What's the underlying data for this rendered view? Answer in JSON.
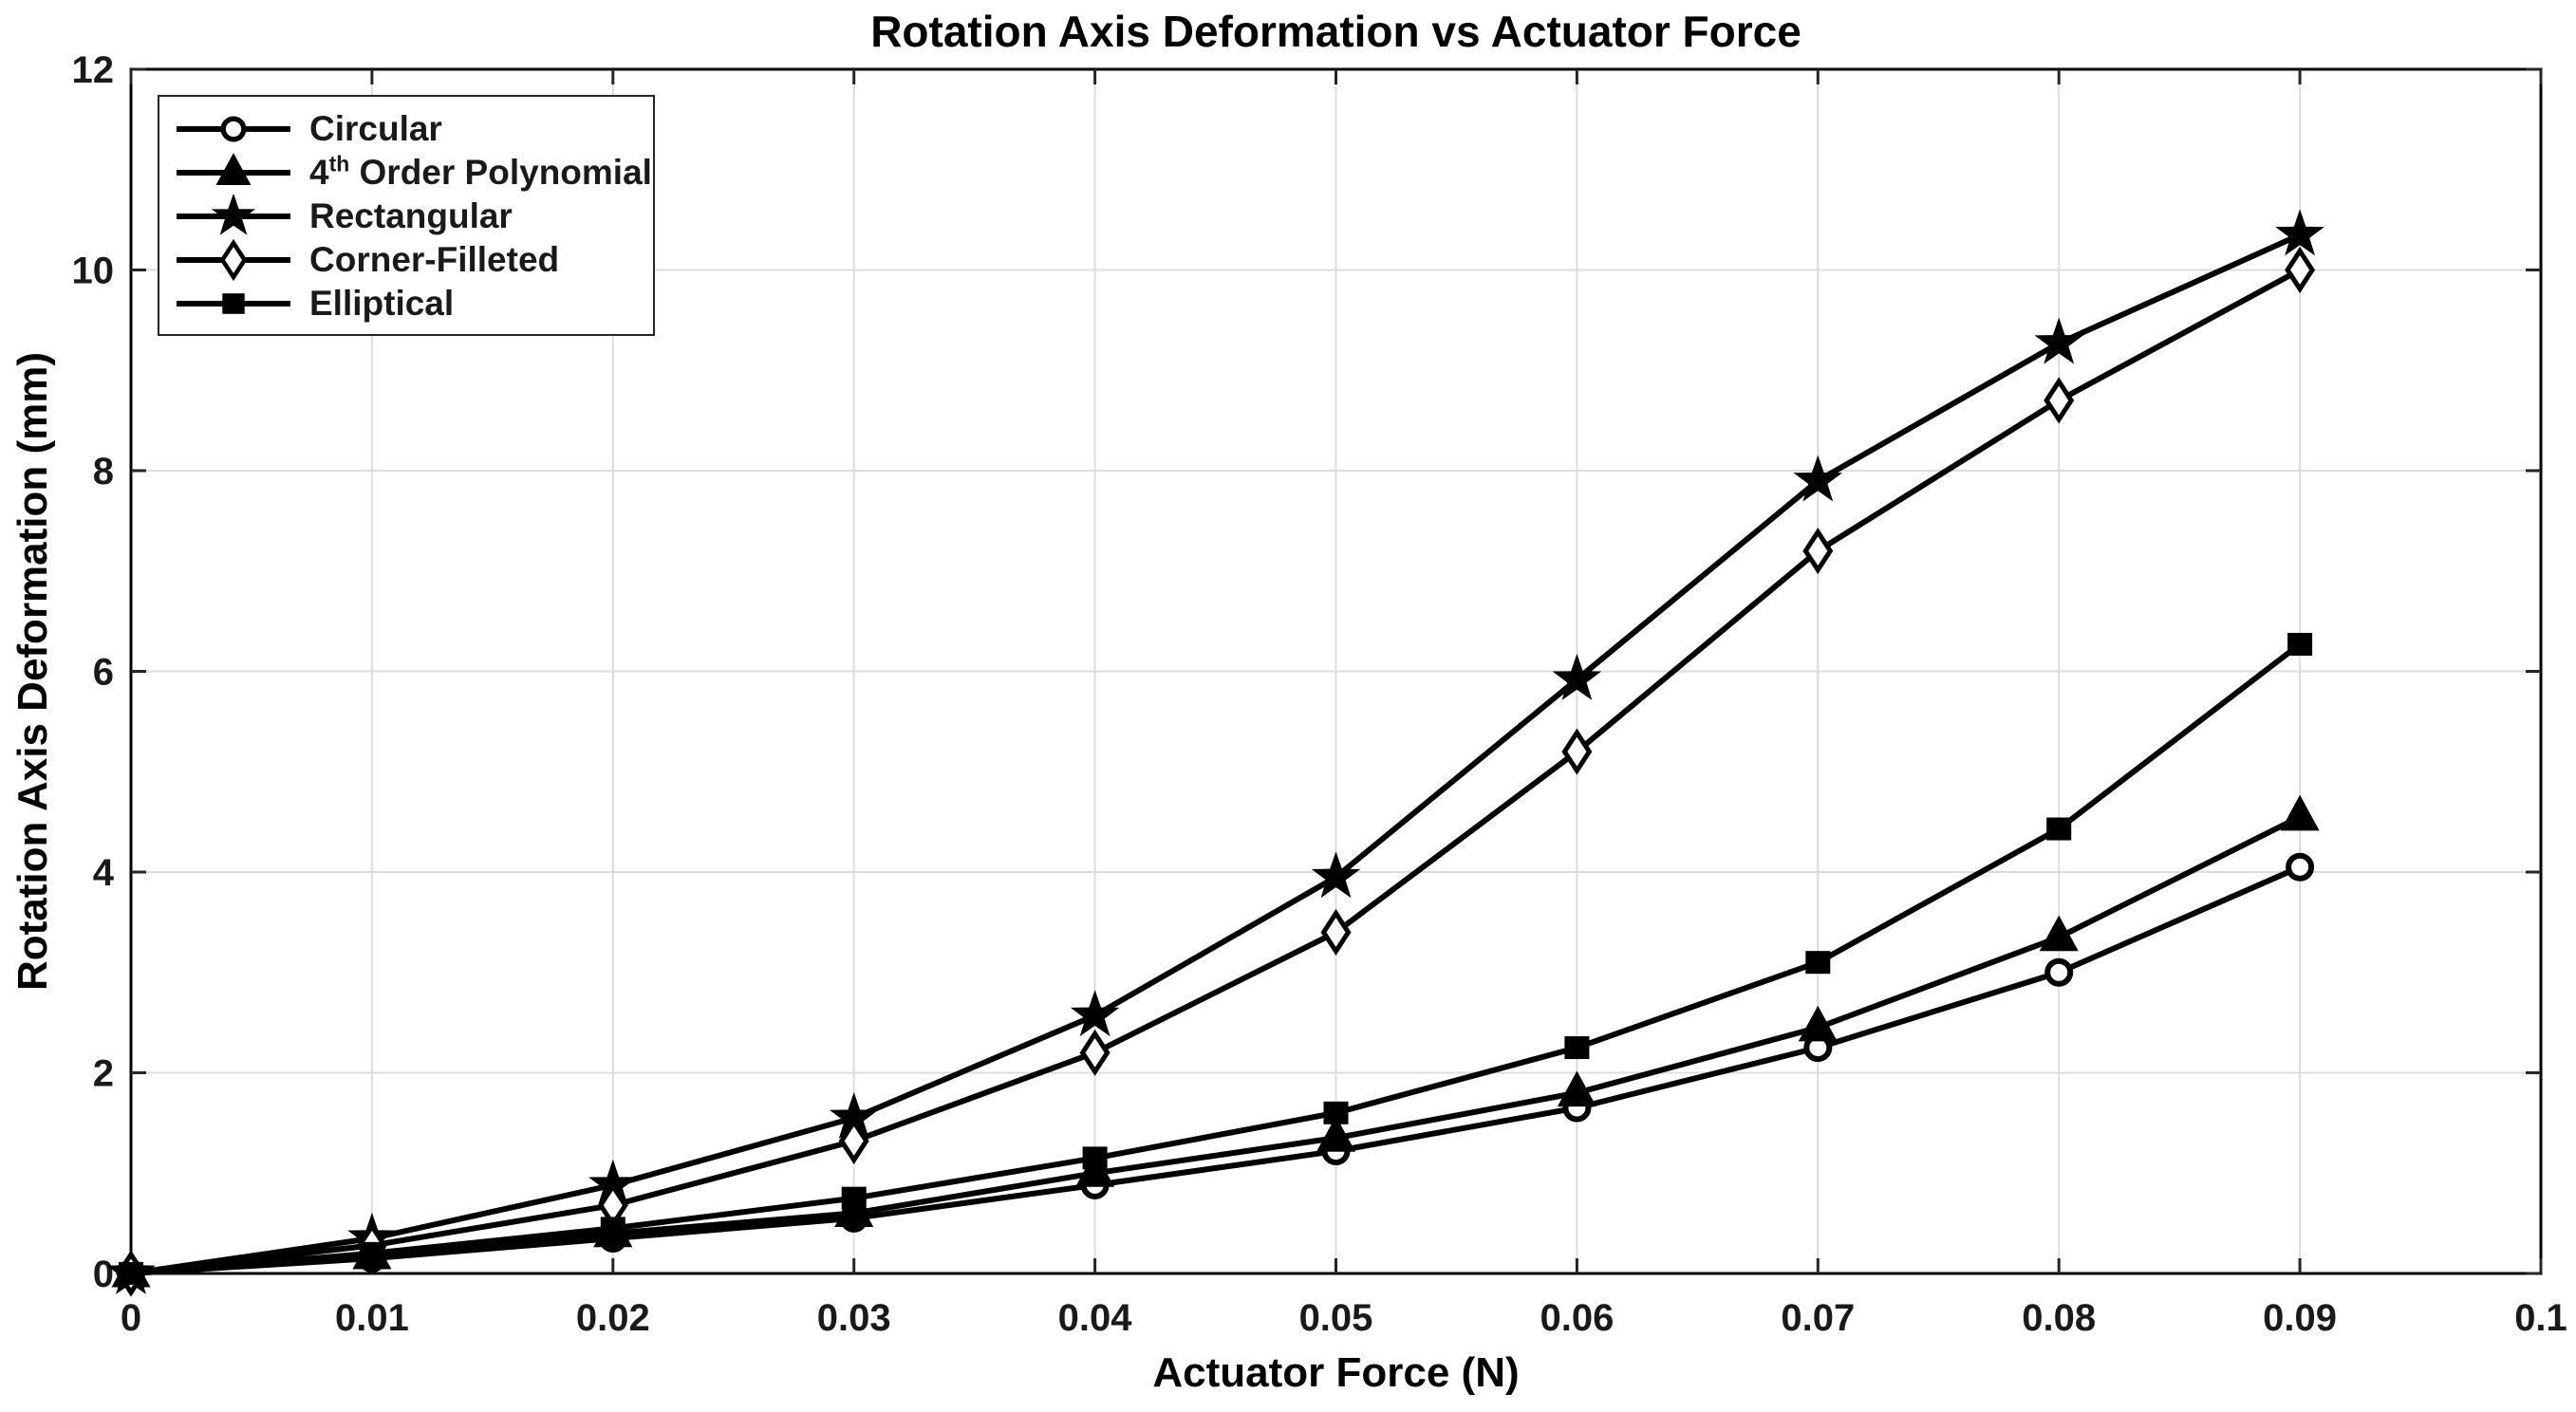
{
  "chart_data": {
    "type": "line",
    "title": "Rotation Axis Deformation vs Actuator Force",
    "xlabel": "Actuator Force (N)",
    "ylabel": "Rotation Axis Deformation (mm)",
    "xlim": [
      0,
      0.1
    ],
    "ylim": [
      0,
      12
    ],
    "xticks": [
      0,
      0.01,
      0.02,
      0.03,
      0.04,
      0.05,
      0.06,
      0.07,
      0.08,
      0.09,
      0.1
    ],
    "xtick_labels": [
      "0",
      "0.01",
      "0.02",
      "0.03",
      "0.04",
      "0.05",
      "0.06",
      "0.07",
      "0.08",
      "0.09",
      "0.1"
    ],
    "yticks": [
      0,
      2,
      4,
      6,
      8,
      10,
      12
    ],
    "ytick_labels": [
      "0",
      "2",
      "4",
      "6",
      "8",
      "10",
      "12"
    ],
    "grid": true,
    "grid_color": "#dcdcdc",
    "axis_color": "#262626",
    "line_color": "#000000",
    "legend_position": "top-left",
    "x": [
      0,
      0.01,
      0.02,
      0.03,
      0.04,
      0.05,
      0.06,
      0.07,
      0.08,
      0.09
    ],
    "series": [
      {
        "name": "Circular",
        "label": "Circular",
        "marker": "circle",
        "marker_fill": "open",
        "values": [
          0,
          0.15,
          0.35,
          0.55,
          0.88,
          1.22,
          1.65,
          2.25,
          3.0,
          4.05
        ]
      },
      {
        "name": "4th Order Polynomial",
        "label": "4th Order Polynomial",
        "label_parts": {
          "base": "4",
          "sup": "th",
          "rest": " Order Polynomial"
        },
        "marker": "triangle",
        "marker_fill": "filled",
        "values": [
          0,
          0.18,
          0.4,
          0.6,
          1.0,
          1.35,
          1.8,
          2.45,
          3.35,
          4.55
        ]
      },
      {
        "name": "Rectangular",
        "label": "Rectangular",
        "marker": "star",
        "marker_fill": "filled",
        "values": [
          0,
          0.35,
          0.88,
          1.55,
          2.57,
          3.95,
          5.92,
          7.9,
          9.27,
          10.35
        ]
      },
      {
        "name": "Corner-Filleted",
        "label": "Corner-Filleted",
        "marker": "diamond",
        "marker_fill": "open",
        "values": [
          0,
          0.28,
          0.68,
          1.32,
          2.2,
          3.4,
          5.2,
          7.2,
          8.7,
          10.0
        ]
      },
      {
        "name": "Elliptical",
        "label": "Elliptical",
        "marker": "square",
        "marker_fill": "filled",
        "values": [
          0,
          0.2,
          0.45,
          0.75,
          1.15,
          1.6,
          2.25,
          3.1,
          4.43,
          6.27
        ]
      }
    ]
  }
}
